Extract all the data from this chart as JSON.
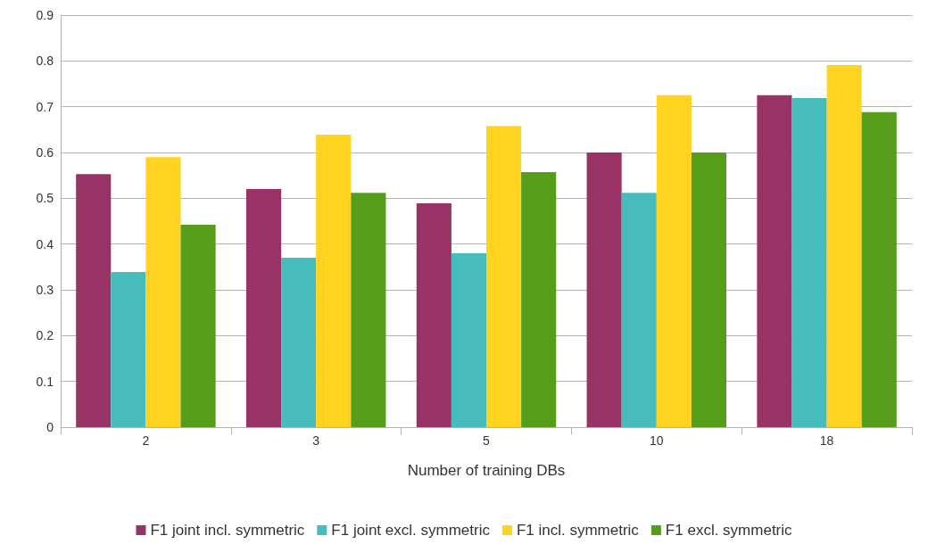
{
  "chart_data": {
    "type": "bar",
    "xlabel": "Number of training DBs",
    "categories": [
      "2",
      "3",
      "5",
      "10",
      "18"
    ],
    "series": [
      {
        "name": "F1 joint incl. symmetric",
        "color": "#993366",
        "values": [
          0.553,
          0.52,
          0.489,
          0.6,
          0.725
        ]
      },
      {
        "name": "F1 joint excl. symmetric",
        "color": "#46bdbc",
        "values": [
          0.339,
          0.37,
          0.38,
          0.512,
          0.719
        ]
      },
      {
        "name": "F1 incl. symmetric",
        "color": "#ffd320",
        "values": [
          0.59,
          0.639,
          0.658,
          0.725,
          0.791
        ]
      },
      {
        "name": "F1 excl. symmetric",
        "color": "#579d1c",
        "values": [
          0.442,
          0.512,
          0.557,
          0.6,
          0.688
        ]
      }
    ],
    "ylim": [
      0,
      0.9
    ],
    "yticks": [
      0,
      0.1,
      0.2,
      0.3,
      0.4,
      0.5,
      0.6,
      0.7,
      0.8,
      0.9
    ],
    "grid": "y",
    "legend": "bottom"
  }
}
